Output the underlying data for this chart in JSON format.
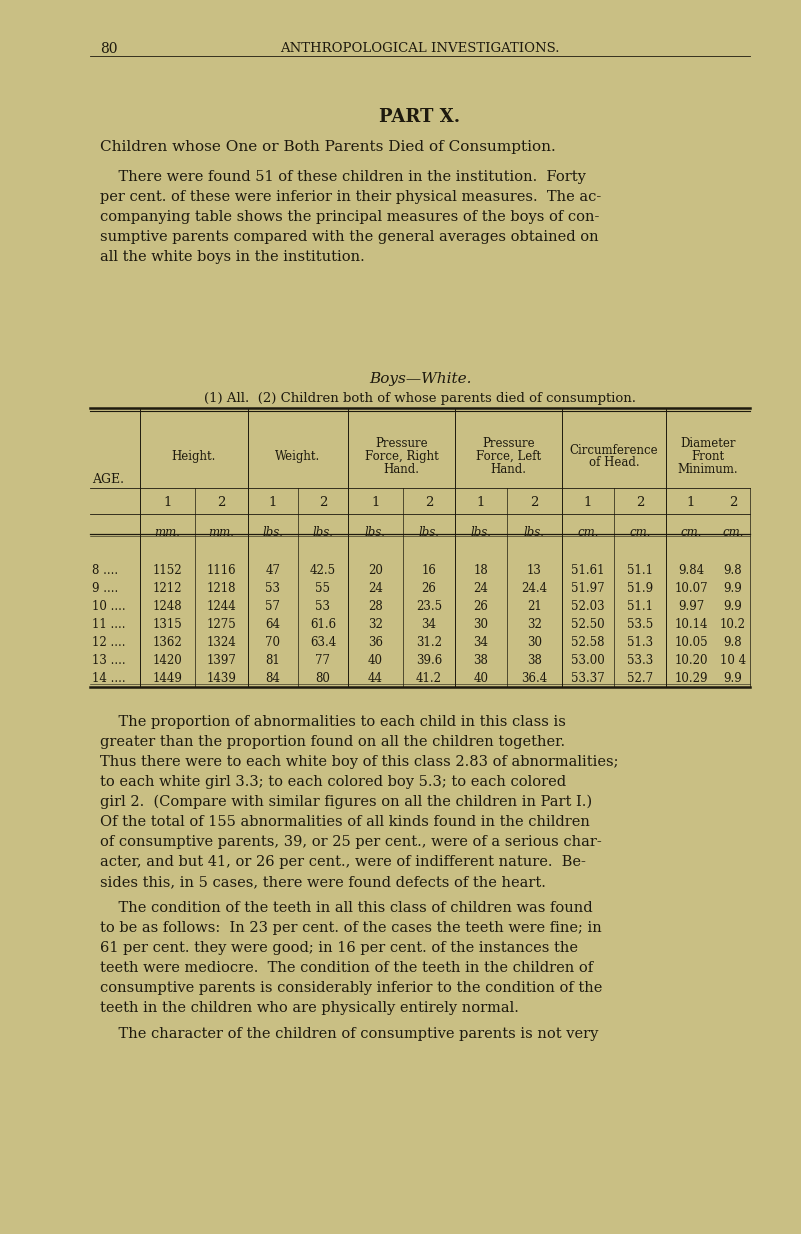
{
  "bg_color": "#c9bf84",
  "text_color": "#1e1a0e",
  "page_number": "80",
  "header_title": "Anthropological Investigations.",
  "part_title": "PART X.",
  "section_title": "Children whose One or Both Parents Died of Consumption.",
  "paragraph1_lines": [
    "    There were found 51 of these children in the institution.  Forty",
    "per cent. of these were inferior in their physical measures.  The ac-",
    "companying table shows the principal measures of the boys of con-",
    "sumptive parents compared with the general averages obtained on",
    "all the white boys in the institution."
  ],
  "table_title": "Boys—White.",
  "table_subtitle": "(1) All.  (2) Children both of whose parents died of consumption.",
  "units_row": [
    "mm.",
    "mm.",
    "lbs.",
    "lbs.",
    "lbs.",
    "lbs.",
    "lbs.",
    "lbs.",
    "cm.",
    "cm.",
    "cm.",
    "cm."
  ],
  "ages": [
    "8 ....",
    "9 ....",
    "10 ....",
    "11 ....",
    "12 ....",
    "13 ....",
    "14 ...."
  ],
  "data_rows": [
    [
      "1152",
      "1116",
      "47",
      "42.5",
      "20",
      "16",
      "18",
      "13",
      "51.61",
      "51.1",
      "9.84",
      "9.8"
    ],
    [
      "1212",
      "1218",
      "53",
      "55",
      "24",
      "26",
      "24",
      "24.4",
      "51.97",
      "51.9",
      "10.07",
      "9.9"
    ],
    [
      "1248",
      "1244",
      "57",
      "53",
      "28",
      "23.5",
      "26",
      "21",
      "52.03",
      "51.1",
      "9.97",
      "9.9"
    ],
    [
      "1315",
      "1275",
      "64",
      "61.6",
      "32",
      "34",
      "30",
      "32",
      "52.50",
      "53.5",
      "10.14",
      "10.2"
    ],
    [
      "1362",
      "1324",
      "70",
      "63.4",
      "36",
      "31.2",
      "34",
      "30",
      "52.58",
      "51.3",
      "10.05",
      "9.8"
    ],
    [
      "1420",
      "1397",
      "81",
      "77",
      "40",
      "39.6",
      "38",
      "38",
      "53.00",
      "53.3",
      "10.20",
      "10 4"
    ],
    [
      "1449",
      "1439",
      "84",
      "80",
      "44",
      "41.2",
      "40",
      "36.4",
      "53.37",
      "52.7",
      "10.29",
      "9.9"
    ]
  ],
  "paragraph2_lines": [
    "    The proportion of abnormalities to each child in this class is",
    "greater than the proportion found on all the children together.",
    "Thus there were to each white boy of this class 2.83 of abnormalities;",
    "to each white girl 3.3; to each colored boy 5.3; to each colored",
    "girl 2.  (Compare with similar figures on all the children in Part I.)",
    "Of the total of 155 abnormalities of all kinds found in the children",
    "of consumptive parents, 39, or 25 per cent., were of a serious char-",
    "acter, and but 41, or 26 per cent., were of indifferent nature.  Be-",
    "sides this, in 5 cases, there were found defects of the heart."
  ],
  "paragraph3_lines": [
    "    The condition of the teeth in all this class of children was found",
    "to be as follows:  In 23 per cent. of the cases the teeth were fine; in",
    "61 per cent. they were good; in 16 per cent. of the instances the",
    "teeth were mediocre.  The condition of the teeth in the children of",
    "consumptive parents is considerably inferior to the condition of the",
    "teeth in the children who are physically entirely normal."
  ],
  "paragraph4_lines": [
    "    The character of the children of consumptive parents is not very"
  ]
}
